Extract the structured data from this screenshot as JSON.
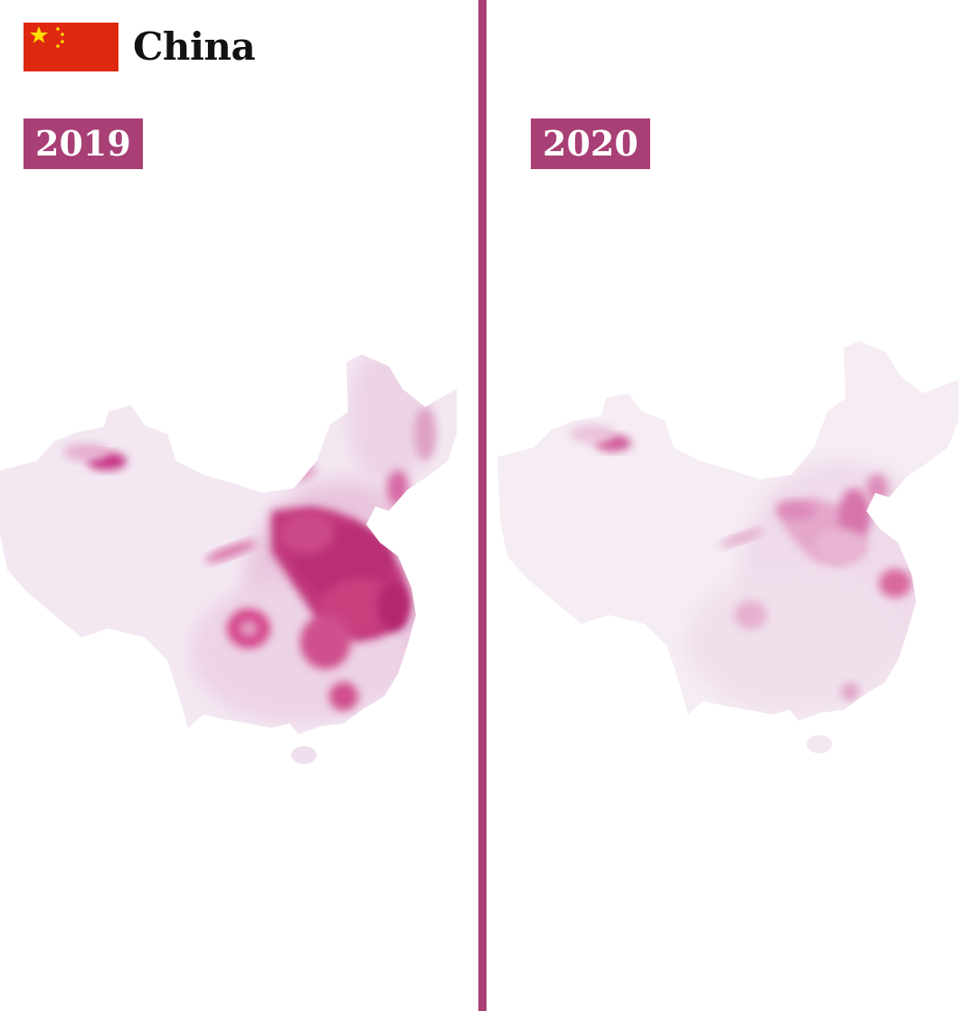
{
  "header": {
    "country_name": "China",
    "flag_icon": "china-flag-icon"
  },
  "panels": [
    {
      "year": "2019",
      "intensity": "high"
    },
    {
      "year": "2020",
      "intensity": "low"
    }
  ],
  "colors": {
    "accent": "#a83f75",
    "divider": "#a83f75",
    "map_base": "#f3e6f1",
    "hotspot": "#d62f7f",
    "flag_red": "#de2910",
    "flag_star": "#ffde00"
  }
}
